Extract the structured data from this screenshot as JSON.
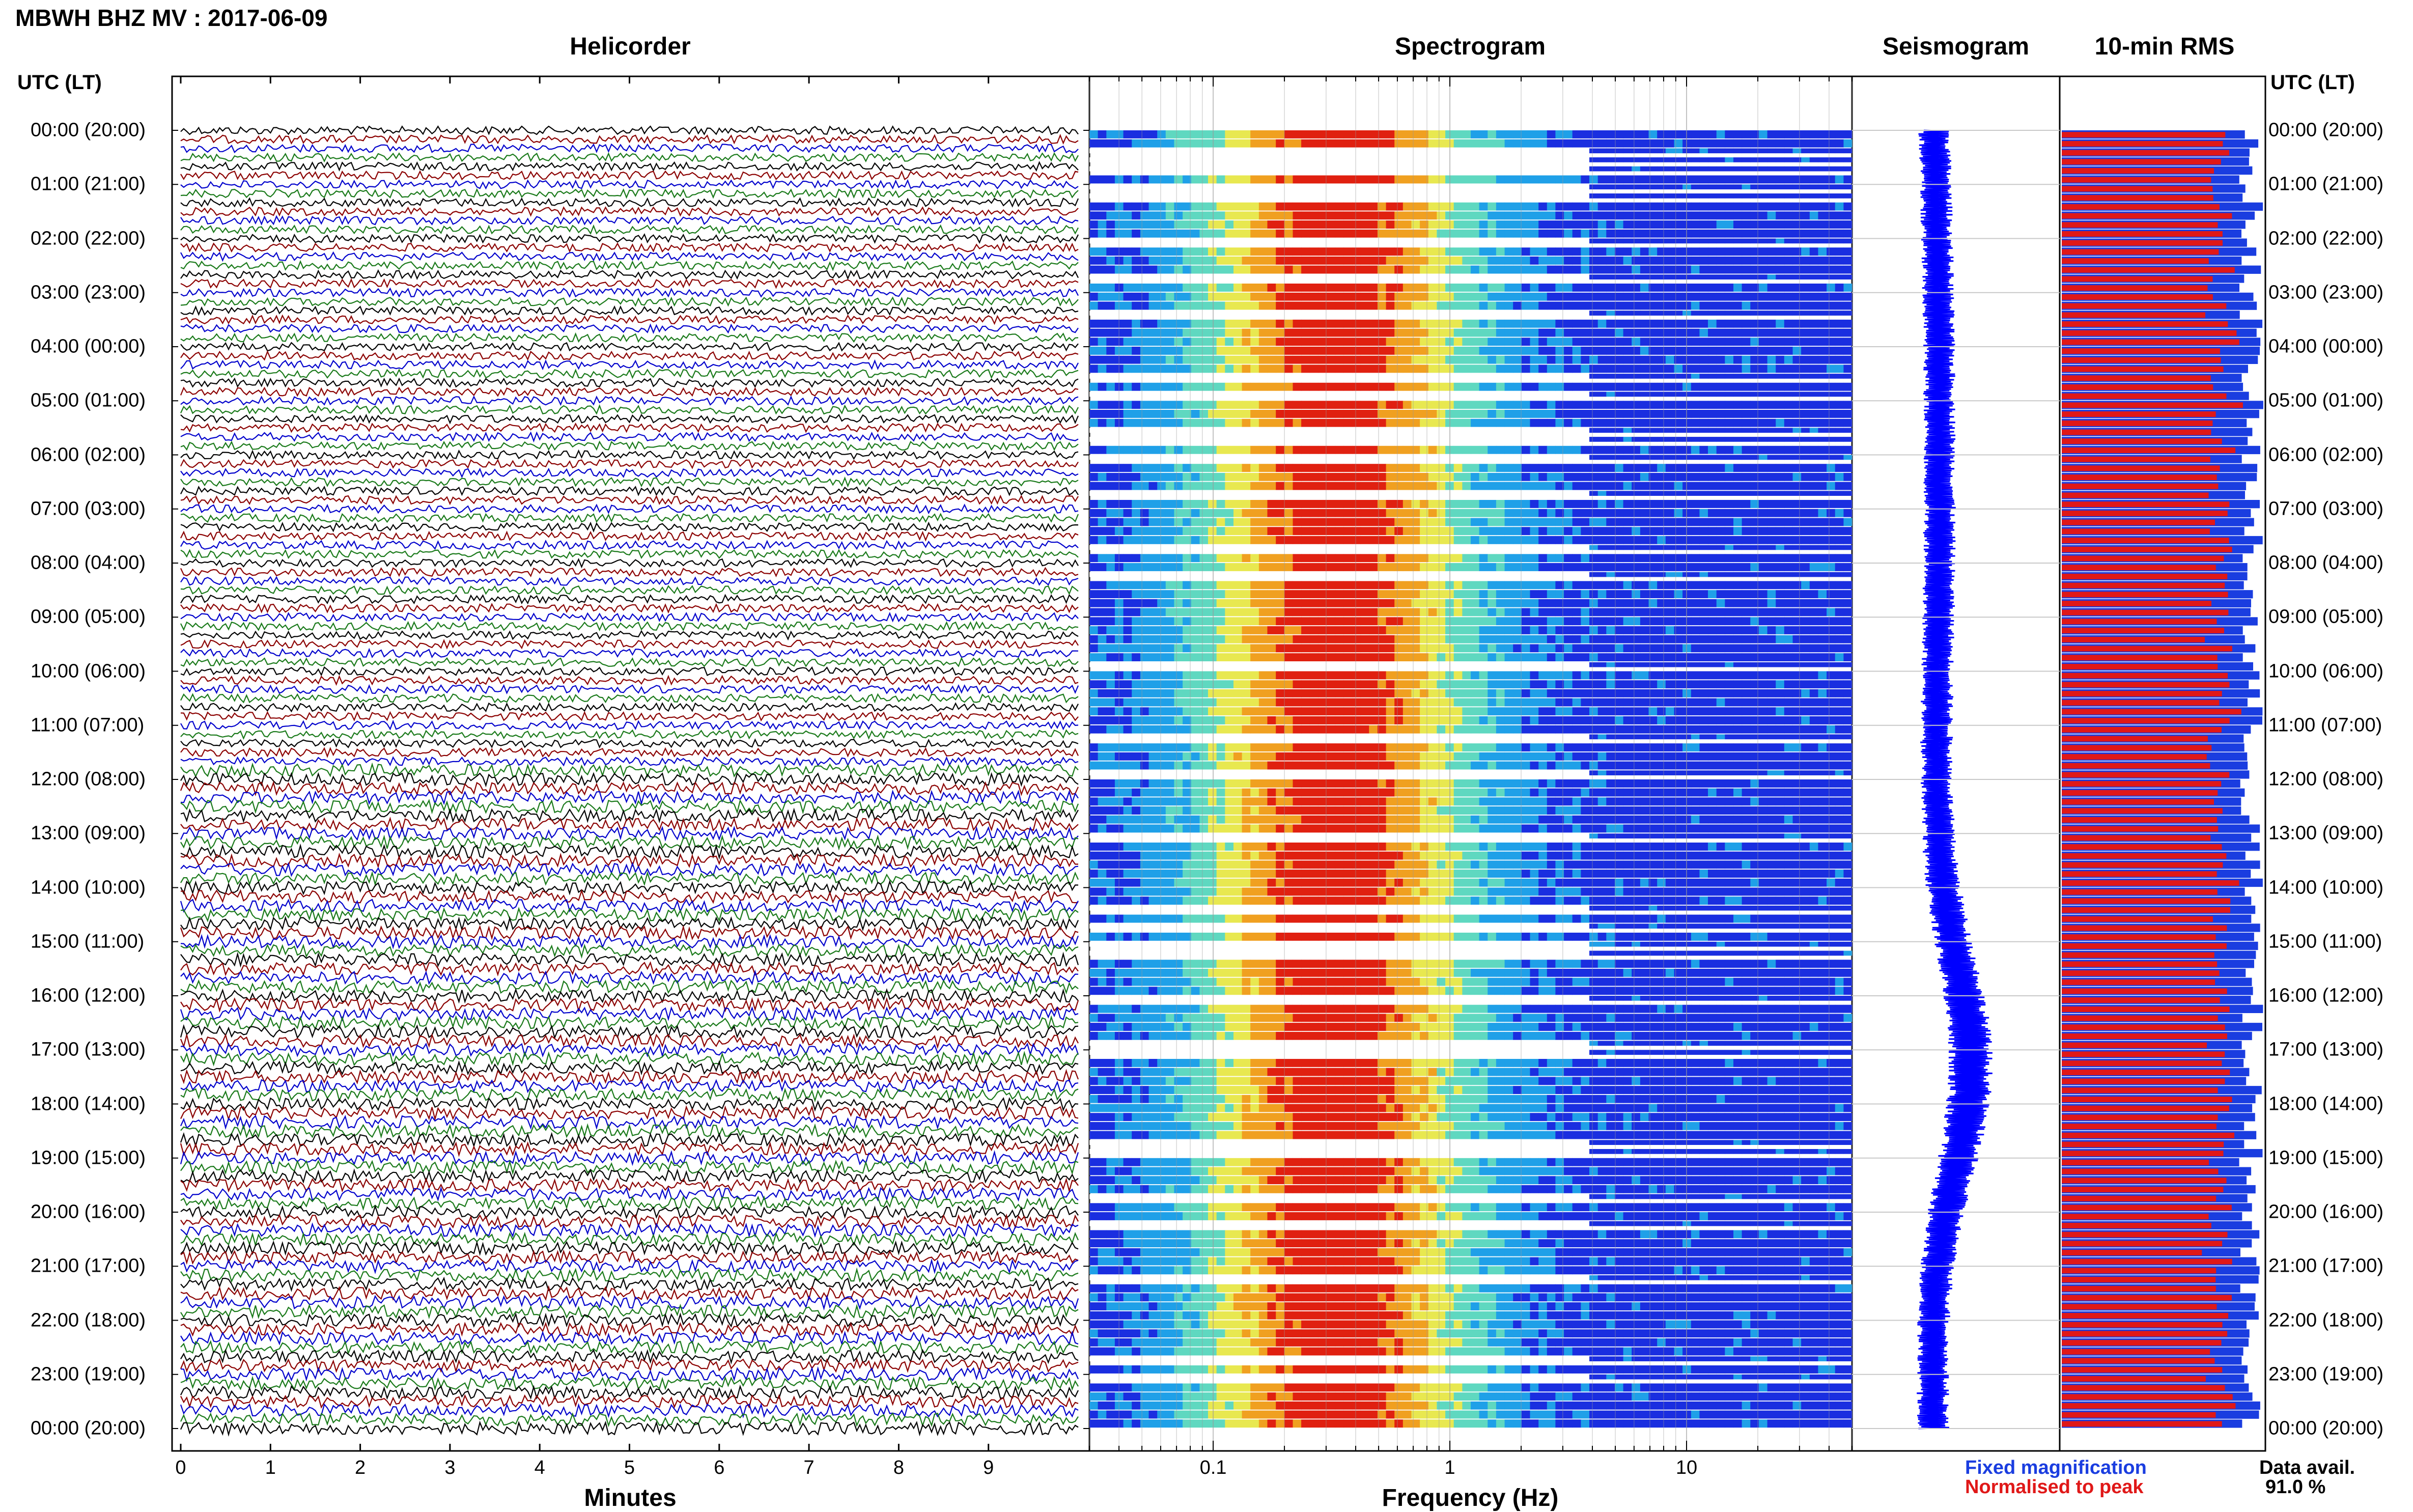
{
  "title": "MBWH BHZ MV : 2017-06-09",
  "panels": {
    "helicorder": "Helicorder",
    "spectrogram": "Spectrogram",
    "seismogram": "Seismogram",
    "rms": "10-min RMS"
  },
  "axis_header_left": "UTC (LT)",
  "axis_header_right": "UTC (LT)",
  "hour_labels": [
    "00:00 (20:00)",
    "01:00 (21:00)",
    "02:00 (22:00)",
    "03:00 (23:00)",
    "04:00 (00:00)",
    "05:00 (01:00)",
    "06:00 (02:00)",
    "07:00 (03:00)",
    "08:00 (04:00)",
    "09:00 (05:00)",
    "10:00 (06:00)",
    "11:00 (07:00)",
    "12:00 (08:00)",
    "13:00 (09:00)",
    "14:00 (10:00)",
    "15:00 (11:00)",
    "16:00 (12:00)",
    "17:00 (13:00)",
    "18:00 (14:00)",
    "19:00 (15:00)",
    "20:00 (16:00)",
    "21:00 (17:00)",
    "22:00 (18:00)",
    "23:00 (19:00)",
    "00:00 (20:00)"
  ],
  "legend": {
    "fixed": "Fixed magnification",
    "normalised": "Normalised to peak",
    "fixed_color": "#1a3de0",
    "normalised_color": "#e01818"
  },
  "data_availability": {
    "label": "Data avail.",
    "value": "91.0 %"
  },
  "chart_data": [
    {
      "type": "line",
      "panel": "Helicorder",
      "xlabel": "Minutes",
      "x_ticks": [
        "0",
        "1",
        "2",
        "3",
        "4",
        "5",
        "6",
        "7",
        "8",
        "9"
      ],
      "xlim": [
        0,
        10
      ],
      "trace_colors": [
        "#000000",
        "#8b0000",
        "#0000cc",
        "#1a7a1a"
      ],
      "ylabel": "UTC (LT)"
    },
    {
      "type": "heatmap",
      "panel": "Spectrogram",
      "xlabel": "Frequency (Hz)",
      "x_scale": "log",
      "x_ticks": [
        "0.1",
        "1",
        "10"
      ],
      "xlim": [
        0.03,
        50
      ],
      "colormap": [
        "#1a2ee0",
        "#1fa0e8",
        "#5fd8c0",
        "#e8e850",
        "#f0a020",
        "#e02010"
      ]
    },
    {
      "type": "line",
      "panel": "Seismogram",
      "color": "#0000ff"
    },
    {
      "type": "bar",
      "panel": "10-min RMS",
      "orientation": "horizontal",
      "series": [
        {
          "name": "Fixed magnification",
          "color": "#1a3de0"
        },
        {
          "name": "Normalised to peak",
          "color": "#e01818"
        }
      ]
    }
  ]
}
